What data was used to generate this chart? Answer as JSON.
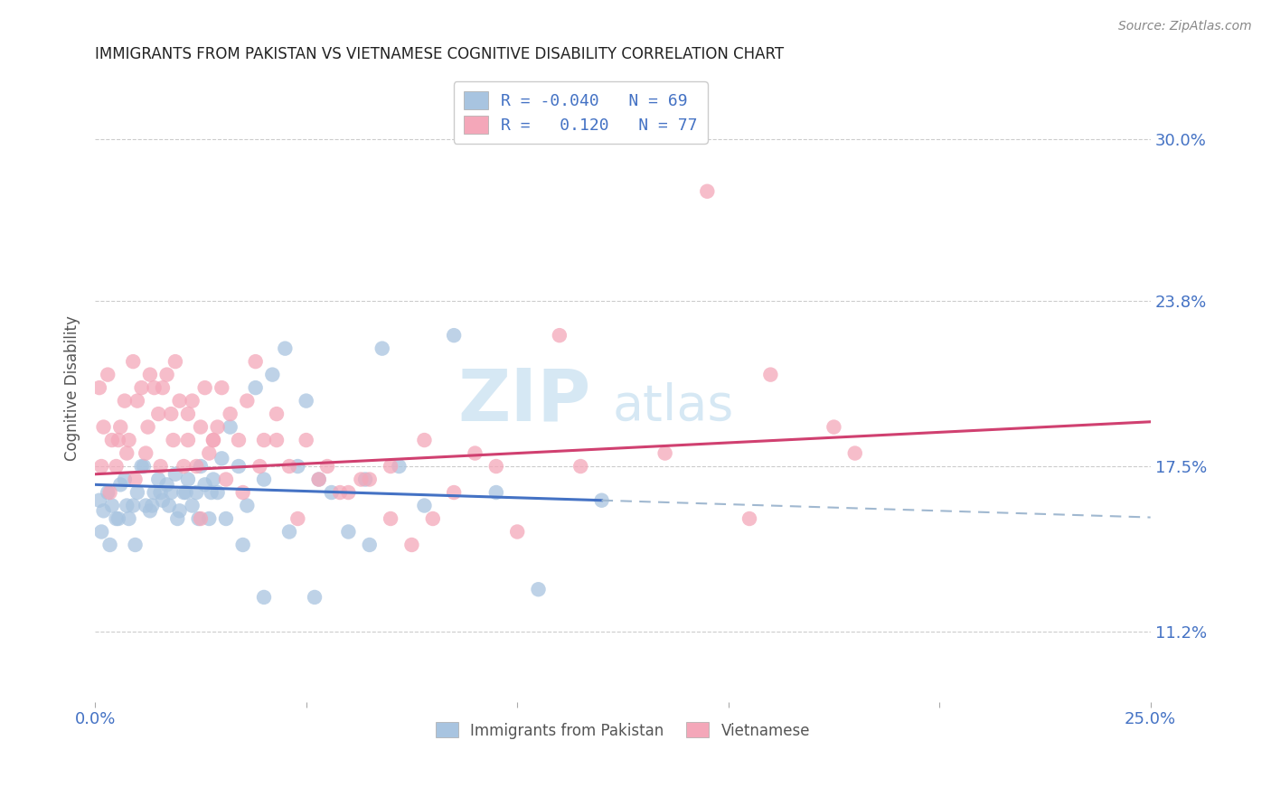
{
  "title": "IMMIGRANTS FROM PAKISTAN VS VIETNAMESE COGNITIVE DISABILITY CORRELATION CHART",
  "source": "Source: ZipAtlas.com",
  "ylabel": "Cognitive Disability",
  "yticks": [
    11.2,
    17.5,
    23.8,
    30.0
  ],
  "ytick_labels": [
    "11.2%",
    "17.5%",
    "23.8%",
    "30.0%"
  ],
  "xmin": 0.0,
  "xmax": 25.0,
  "ymin": 8.5,
  "ymax": 32.5,
  "legend_label1": "Immigrants from Pakistan",
  "legend_label2": "Vietnamese",
  "R1": -0.04,
  "N1": 69,
  "R2": 0.12,
  "N2": 77,
  "color1": "#a8c4e0",
  "color2": "#f4a7b9",
  "line_color1": "#4472c4",
  "line_color2": "#d04070",
  "dashed_color": "#a0b8d0",
  "watermark_zip": "ZIP",
  "watermark_atlas": "atlas",
  "title_color": "#222222",
  "axis_label_color": "#4472c4",
  "pakistan_x": [
    0.1,
    0.2,
    0.3,
    0.4,
    0.5,
    0.6,
    0.7,
    0.8,
    0.9,
    1.0,
    1.1,
    1.2,
    1.3,
    1.4,
    1.5,
    1.6,
    1.7,
    1.8,
    1.9,
    2.0,
    2.1,
    2.2,
    2.3,
    2.4,
    2.5,
    2.6,
    2.7,
    2.8,
    2.9,
    3.0,
    3.2,
    3.4,
    3.6,
    3.8,
    4.0,
    4.2,
    4.5,
    4.8,
    5.0,
    5.3,
    5.6,
    6.0,
    6.4,
    6.8,
    7.2,
    7.8,
    8.5,
    9.5,
    10.5,
    12.0,
    0.15,
    0.35,
    0.55,
    0.75,
    0.95,
    1.15,
    1.35,
    1.55,
    1.75,
    1.95,
    2.15,
    2.45,
    2.75,
    3.1,
    3.5,
    4.0,
    4.6,
    5.2,
    6.5
  ],
  "pakistan_y": [
    16.2,
    15.8,
    16.5,
    16.0,
    15.5,
    16.8,
    17.0,
    15.5,
    16.0,
    16.5,
    17.5,
    16.0,
    15.8,
    16.5,
    17.0,
    16.2,
    16.8,
    16.5,
    17.2,
    15.8,
    16.5,
    17.0,
    16.0,
    16.5,
    17.5,
    16.8,
    15.5,
    17.0,
    16.5,
    17.8,
    19.0,
    17.5,
    16.0,
    20.5,
    17.0,
    21.0,
    22.0,
    17.5,
    20.0,
    17.0,
    16.5,
    15.0,
    17.0,
    22.0,
    17.5,
    16.0,
    22.5,
    16.5,
    12.8,
    16.2,
    15.0,
    14.5,
    15.5,
    16.0,
    14.5,
    17.5,
    16.0,
    16.5,
    16.0,
    15.5,
    16.5,
    15.5,
    16.5,
    15.5,
    14.5,
    12.5,
    15.0,
    12.5,
    14.5
  ],
  "vietnamese_x": [
    0.1,
    0.2,
    0.3,
    0.4,
    0.5,
    0.6,
    0.7,
    0.8,
    0.9,
    1.0,
    1.1,
    1.2,
    1.3,
    1.4,
    1.5,
    1.6,
    1.7,
    1.8,
    1.9,
    2.0,
    2.1,
    2.2,
    2.3,
    2.4,
    2.5,
    2.6,
    2.7,
    2.8,
    2.9,
    3.0,
    3.2,
    3.4,
    3.6,
    3.8,
    4.0,
    4.3,
    4.6,
    5.0,
    5.5,
    6.0,
    6.5,
    7.0,
    7.5,
    8.0,
    9.0,
    10.0,
    11.5,
    14.5,
    15.5,
    18.0,
    0.15,
    0.35,
    0.55,
    0.75,
    0.95,
    1.25,
    1.55,
    1.85,
    2.2,
    2.5,
    2.8,
    3.1,
    3.5,
    3.9,
    4.3,
    4.8,
    5.3,
    5.8,
    6.3,
    7.0,
    7.8,
    8.5,
    9.5,
    11.0,
    13.5,
    16.0,
    17.5
  ],
  "vietnamese_y": [
    20.5,
    19.0,
    21.0,
    18.5,
    17.5,
    19.0,
    20.0,
    18.5,
    21.5,
    20.0,
    20.5,
    18.0,
    21.0,
    20.5,
    19.5,
    20.5,
    21.0,
    19.5,
    21.5,
    20.0,
    17.5,
    18.5,
    20.0,
    17.5,
    19.0,
    20.5,
    18.0,
    18.5,
    19.0,
    20.5,
    19.5,
    18.5,
    20.0,
    21.5,
    18.5,
    19.5,
    17.5,
    18.5,
    17.5,
    16.5,
    17.0,
    17.5,
    14.5,
    15.5,
    18.0,
    15.0,
    17.5,
    28.0,
    15.5,
    18.0,
    17.5,
    16.5,
    18.5,
    18.0,
    17.0,
    19.0,
    17.5,
    18.5,
    19.5,
    15.5,
    18.5,
    17.0,
    16.5,
    17.5,
    18.5,
    15.5,
    17.0,
    16.5,
    17.0,
    15.5,
    18.5,
    16.5,
    17.5,
    22.5,
    18.0,
    21.0,
    19.0
  ],
  "pak_line_x0": 0.0,
  "pak_line_x1": 12.0,
  "pak_line_y0": 16.8,
  "pak_line_y1": 16.2,
  "viet_line_x0": 0.0,
  "viet_line_x1": 25.0,
  "viet_line_y0": 17.2,
  "viet_line_y1": 19.2
}
